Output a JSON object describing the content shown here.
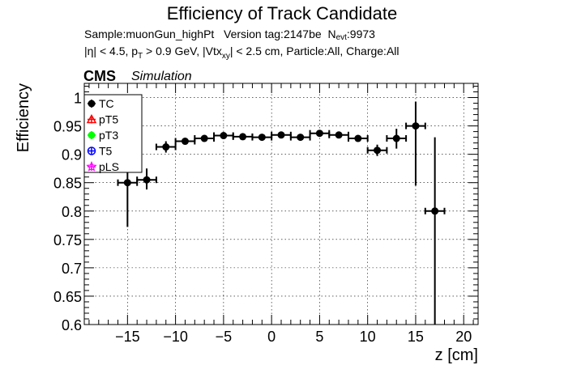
{
  "chart_data": {
    "type": "scatter",
    "title": "Efficiency of Track Candidate",
    "subtitle_line1": {
      "sample": "Sample:muonGun_highPt",
      "version": "Version tag:2147be",
      "n_main": "N",
      "n_sub": "evt",
      "n_value": ":9973"
    },
    "subtitle_line2": {
      "eta": "|η| < 4.5, p",
      "pt_sub": "T",
      "pt_rest": " > 0.9 GeV, |Vtx",
      "vtx_sub": "xy",
      "vtx_rest": "| < 2.5 cm, Particle:All, Charge:All"
    },
    "cms_label": "CMS",
    "simulation_label": "Simulation",
    "xlabel": "z [cm]",
    "ylabel": "Efficiency",
    "xlim": [
      -19.5,
      21.5
    ],
    "ylim": [
      0.6,
      1.025
    ],
    "x_ticks": [
      -15,
      -10,
      -5,
      0,
      5,
      10,
      15,
      20
    ],
    "x_tick_labels": [
      "−15",
      "−10",
      "−5",
      "0",
      "5",
      "10",
      "15",
      "20"
    ],
    "y_ticks": [
      0.6,
      0.65,
      0.7,
      0.75,
      0.8,
      0.85,
      0.9,
      0.95,
      1.0
    ],
    "y_tick_labels": [
      "0.6",
      "0.65",
      "0.7",
      "0.75",
      "0.8",
      "0.85",
      "0.9",
      "0.95",
      "1"
    ],
    "grid": true,
    "legend_position": "top-left",
    "legend": [
      {
        "name": "TC",
        "color": "#000000",
        "marker": "filled-circle"
      },
      {
        "name": "pT5",
        "color": "#ff0000",
        "marker": "open-triangle"
      },
      {
        "name": "pT3",
        "color": "#00ff00",
        "marker": "filled-circle"
      },
      {
        "name": "T5",
        "color": "#0000ff",
        "marker": "open-circle"
      },
      {
        "name": "pLS",
        "color": "#ff00ff",
        "marker": "open-star"
      }
    ],
    "series": [
      {
        "name": "TC",
        "color": "#000000",
        "points": [
          {
            "x": -15,
            "xerr": 1,
            "y": 0.85,
            "ylo": 0.772,
            "yhi": 0.868
          },
          {
            "x": -13,
            "xerr": 1,
            "y": 0.855,
            "ylo": 0.838,
            "yhi": 0.875
          },
          {
            "x": -11,
            "xerr": 1,
            "y": 0.913,
            "ylo": 0.903,
            "yhi": 0.923
          },
          {
            "x": -9,
            "xerr": 1,
            "y": 0.923,
            "ylo": 0.918,
            "yhi": 0.928
          },
          {
            "x": -7,
            "xerr": 1,
            "y": 0.928,
            "ylo": 0.924,
            "yhi": 0.932
          },
          {
            "x": -5,
            "xerr": 1,
            "y": 0.933,
            "ylo": 0.929,
            "yhi": 0.937
          },
          {
            "x": -3,
            "xerr": 1,
            "y": 0.931,
            "ylo": 0.927,
            "yhi": 0.935
          },
          {
            "x": -1,
            "xerr": 1,
            "y": 0.93,
            "ylo": 0.926,
            "yhi": 0.934
          },
          {
            "x": 1,
            "xerr": 1,
            "y": 0.934,
            "ylo": 0.93,
            "yhi": 0.938
          },
          {
            "x": 3,
            "xerr": 1,
            "y": 0.93,
            "ylo": 0.926,
            "yhi": 0.934
          },
          {
            "x": 5,
            "xerr": 1,
            "y": 0.937,
            "ylo": 0.933,
            "yhi": 0.941
          },
          {
            "x": 7,
            "xerr": 1,
            "y": 0.934,
            "ylo": 0.93,
            "yhi": 0.938
          },
          {
            "x": 9,
            "xerr": 1,
            "y": 0.928,
            "ylo": 0.923,
            "yhi": 0.933
          },
          {
            "x": 11,
            "xerr": 1,
            "y": 0.907,
            "ylo": 0.897,
            "yhi": 0.917
          },
          {
            "x": 13,
            "xerr": 1,
            "y": 0.928,
            "ylo": 0.91,
            "yhi": 0.945
          },
          {
            "x": 15,
            "xerr": 1,
            "y": 0.95,
            "ylo": 0.845,
            "yhi": 0.993
          },
          {
            "x": 17,
            "xerr": 1,
            "y": 0.8,
            "ylo": 0.6,
            "yhi": 0.93
          }
        ]
      }
    ]
  }
}
